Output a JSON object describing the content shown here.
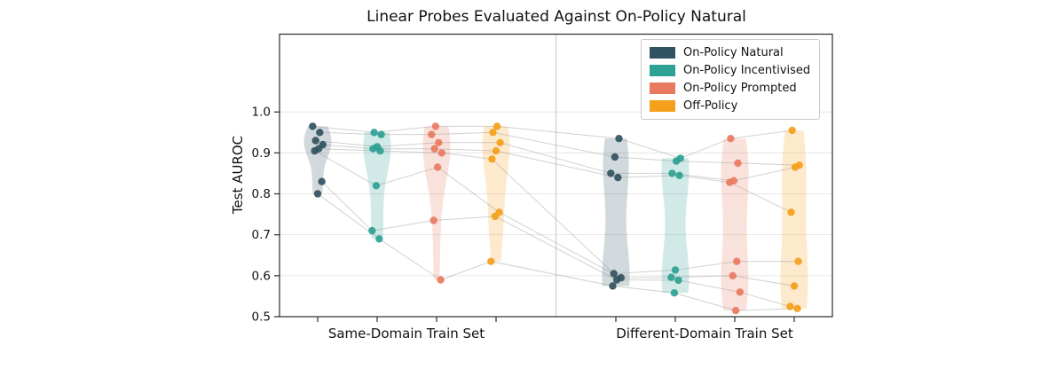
{
  "chart_data": {
    "type": "violin",
    "title": "Linear Probes Evaluated Against On-Policy Natural",
    "ylabel": "Test AUROC",
    "xlabel": "",
    "ylim": [
      0.5,
      1.19
    ],
    "yticks": [
      0.5,
      0.6,
      0.7,
      0.8,
      0.9,
      1.0
    ],
    "ytick_labels": [
      "0.5",
      "0.6",
      "0.7",
      "0.8",
      "0.9",
      "1.0"
    ],
    "categories": [
      "Same-Domain Train Set",
      "Different-Domain Train Set"
    ],
    "grid": "horizontal",
    "legend_position": "upper-right",
    "conditions": [
      {
        "name": "On-Policy Natural",
        "color": "#315260"
      },
      {
        "name": "On-Policy Incentivised",
        "color": "#2da193"
      },
      {
        "name": "On-Policy Prompted",
        "color": "#e97a5f"
      },
      {
        "name": "Off-Policy",
        "color": "#f4a01a"
      }
    ],
    "runs": [
      {
        "values": [
          0.965,
          0.95,
          0.965,
          0.965,
          0.935,
          0.887,
          0.935,
          0.955
        ]
      },
      {
        "values": [
          0.95,
          0.945,
          0.945,
          0.95,
          0.89,
          0.88,
          0.875,
          0.87
        ]
      },
      {
        "values": [
          0.93,
          0.915,
          0.925,
          0.925,
          0.85,
          0.85,
          0.832,
          0.865
        ]
      },
      {
        "values": [
          0.92,
          0.91,
          0.91,
          0.905,
          0.84,
          0.845,
          0.828,
          0.755
        ]
      },
      {
        "values": [
          0.91,
          0.905,
          0.9,
          0.885,
          0.605,
          0.614,
          0.635,
          0.635
        ]
      },
      {
        "values": [
          0.905,
          0.82,
          0.865,
          0.755,
          0.595,
          0.596,
          0.6,
          0.575
        ]
      },
      {
        "values": [
          0.83,
          0.71,
          0.735,
          0.745,
          0.59,
          0.589,
          0.56,
          0.525
        ]
      },
      {
        "values": [
          0.8,
          0.69,
          0.59,
          0.635,
          0.575,
          0.558,
          0.515,
          0.52
        ]
      }
    ],
    "colors": {
      "grid_line": "#e6e6e6",
      "group_separator": "#cfcfcf",
      "axis_spine": "#2b2b2b",
      "run_line": "#9a9a9a",
      "text": "#111111"
    }
  }
}
